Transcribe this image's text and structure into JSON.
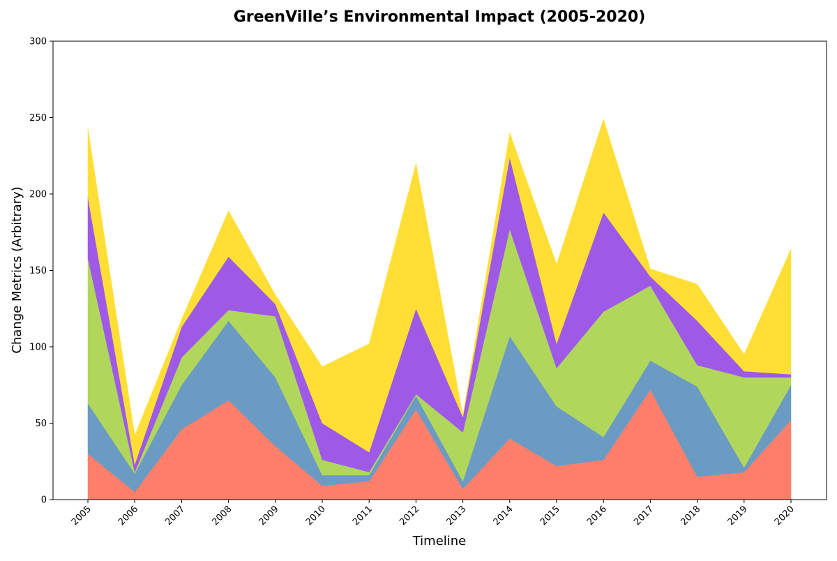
{
  "chart_data": {
    "type": "area",
    "stacked": true,
    "title": "GreenVille’s Environmental Impact (2005-2020)",
    "xlabel": "Timeline",
    "ylabel": "Change Metrics (Arbitrary)",
    "ylim": [
      0,
      300
    ],
    "yticks": [
      0,
      50,
      100,
      150,
      200,
      250,
      300
    ],
    "grid": false,
    "legend": "none",
    "x": [
      "2005",
      "2006",
      "2007",
      "2008",
      "2009",
      "2010",
      "2011",
      "2012",
      "2013",
      "2014",
      "2015",
      "2016",
      "2017",
      "2018",
      "2019",
      "2020"
    ],
    "series": [
      {
        "color": "#ff7f6b",
        "values": [
          30,
          5,
          46,
          65,
          35,
          9,
          12,
          59,
          7,
          40,
          22,
          26,
          72,
          15,
          18,
          52
        ]
      },
      {
        "color": "#6b9bc3",
        "values": [
          33,
          12,
          29,
          52,
          45,
          7,
          4,
          9,
          5,
          67,
          39,
          15,
          19,
          59,
          3,
          23
        ]
      },
      {
        "color": "#b0d75c",
        "values": [
          95,
          1,
          18,
          7,
          40,
          10,
          2,
          1,
          32,
          70,
          25,
          82,
          49,
          14,
          59,
          5
        ]
      },
      {
        "color": "#9e5ae6",
        "values": [
          40,
          5,
          20,
          35,
          8,
          24,
          13,
          56,
          10,
          47,
          16,
          65,
          6,
          29,
          4,
          2
        ]
      },
      {
        "color": "#ffdf36",
        "values": [
          45,
          19,
          5,
          30,
          6,
          37,
          71,
          95,
          1,
          16,
          52,
          61,
          5,
          24,
          11,
          82
        ]
      }
    ]
  }
}
